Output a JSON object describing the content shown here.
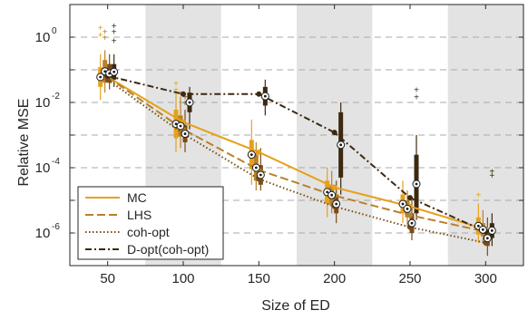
{
  "chart_data": {
    "type": "line",
    "title": "",
    "xlabel": "Size of ED",
    "ylabel": "Relative MSE",
    "xlim": [
      25,
      325
    ],
    "ylim_log10": [
      -7,
      1
    ],
    "yscale": "log",
    "x_ticks": [
      50,
      100,
      150,
      200,
      250,
      300
    ],
    "y_ticks": [
      {
        "base": "10",
        "exp": "0",
        "log": 0
      },
      {
        "base": "10",
        "exp": "-2",
        "log": -2
      },
      {
        "base": "10",
        "exp": "-4",
        "log": -4
      },
      {
        "base": "10",
        "exp": "-6",
        "log": -6
      }
    ],
    "grid": "horizontal dashed at each decade",
    "shaded_x_bands": [
      [
        75,
        125
      ],
      [
        175,
        225
      ],
      [
        275,
        325
      ]
    ],
    "legend_position": "bottom-left",
    "colors": {
      "MC": "#e6a11a",
      "LHS": "#b8812a",
      "coh-opt": "#7a4d18",
      "D-opt(coh-opt)": "#3d2810"
    },
    "x": [
      50,
      100,
      150,
      200,
      250,
      300
    ],
    "series": [
      {
        "name": "MC",
        "style": "solid",
        "values": [
          0.06,
          0.0025,
          0.0003,
          2.5e-05,
          6.5e-06,
          1.3e-06
        ]
      },
      {
        "name": "LHS",
        "style": "dashed",
        "values": [
          0.06,
          0.0015,
          8.5e-05,
          1.4e-05,
          3.5e-06,
          1.1e-06
        ]
      },
      {
        "name": "coh-opt",
        "style": "dotted",
        "values": [
          0.05,
          0.0011,
          4.5e-05,
          6.5e-06,
          1.5e-06,
          5e-07
        ]
      },
      {
        "name": "D-opt(coh-opt)",
        "style": "dashdot",
        "values": [
          0.065,
          0.018,
          0.018,
          0.0012,
          1.2e-05,
          1.1e-06
        ]
      }
    ],
    "boxplots": [
      {
        "series": 0,
        "x": 50,
        "low": 0.012,
        "q1": 0.03,
        "q3": 0.12,
        "high": 0.3,
        "outliers": [
          1.2,
          2.0
        ]
      },
      {
        "series": 1,
        "x": 50,
        "low": 0.02,
        "q1": 0.04,
        "q3": 0.2,
        "high": 0.4,
        "outliers": [
          1.0,
          1.5
        ]
      },
      {
        "series": 2,
        "x": 50,
        "low": 0.025,
        "q1": 0.04,
        "q3": 0.15,
        "high": 0.3,
        "outliers": []
      },
      {
        "series": 3,
        "x": 50,
        "low": 0.03,
        "q1": 0.05,
        "q3": 0.15,
        "high": 0.3,
        "outliers": [
          0.8,
          1.5,
          2.3
        ]
      },
      {
        "series": 0,
        "x": 100,
        "low": 0.0003,
        "q1": 0.0008,
        "q3": 0.006,
        "high": 0.02,
        "outliers": [
          0.025,
          0.04
        ]
      },
      {
        "series": 1,
        "x": 100,
        "low": 0.0004,
        "q1": 0.0009,
        "q3": 0.004,
        "high": 0.015,
        "outliers": [
          0.02
        ]
      },
      {
        "series": 2,
        "x": 100,
        "low": 0.0003,
        "q1": 0.0006,
        "q3": 0.002,
        "high": 0.006,
        "outliers": [
          0.01,
          0.015
        ]
      },
      {
        "series": 3,
        "x": 100,
        "low": 0.0015,
        "q1": 0.005,
        "q3": 0.02,
        "high": 0.03,
        "outliers": []
      },
      {
        "series": 0,
        "x": 150,
        "low": 3e-05,
        "q1": 9e-05,
        "q3": 0.0007,
        "high": 0.003,
        "outliers": [
          0.0003,
          0.0005,
          0.0007
        ]
      },
      {
        "series": 1,
        "x": 150,
        "low": 2e-05,
        "q1": 4e-05,
        "q3": 0.00025,
        "high": 0.0006,
        "outliers": []
      },
      {
        "series": 2,
        "x": 150,
        "low": 2e-05,
        "q1": 3e-05,
        "q3": 0.00012,
        "high": 0.0004,
        "outliers": []
      },
      {
        "series": 3,
        "x": 150,
        "low": 0.004,
        "q1": 0.008,
        "q3": 0.03,
        "high": 0.05,
        "outliers": []
      },
      {
        "series": 0,
        "x": 200,
        "low": 3e-06,
        "q1": 8e-06,
        "q3": 4e-05,
        "high": 0.0001,
        "outliers": []
      },
      {
        "series": 1,
        "x": 200,
        "low": 4e-06,
        "q1": 7e-06,
        "q3": 3e-05,
        "high": 8e-05,
        "outliers": []
      },
      {
        "series": 2,
        "x": 200,
        "low": 2e-06,
        "q1": 4e-06,
        "q3": 1.5e-05,
        "high": 4e-05,
        "outliers": []
      },
      {
        "series": 3,
        "x": 200,
        "low": 1.5e-05,
        "q1": 5e-05,
        "q3": 0.005,
        "high": 0.01,
        "outliers": []
      },
      {
        "series": 0,
        "x": 250,
        "low": 2e-06,
        "q1": 4e-06,
        "q3": 1.5e-05,
        "high": 4e-05,
        "outliers": []
      },
      {
        "series": 1,
        "x": 250,
        "low": 1.5e-06,
        "q1": 3e-06,
        "q3": 1e-05,
        "high": 2e-05,
        "outliers": []
      },
      {
        "series": 2,
        "x": 250,
        "low": 6e-07,
        "q1": 1e-06,
        "q3": 4e-06,
        "high": 1e-05,
        "outliers": []
      },
      {
        "series": 3,
        "x": 250,
        "low": 2.5e-06,
        "q1": 4e-06,
        "q3": 0.00025,
        "high": 0.001,
        "outliers": [
          0.025,
          0.015
        ]
      },
      {
        "series": 0,
        "x": 300,
        "low": 5e-07,
        "q1": 9e-07,
        "q3": 3e-06,
        "high": 8e-06,
        "outliers": [
          1.5e-05
        ]
      },
      {
        "series": 1,
        "x": 300,
        "low": 5e-07,
        "q1": 8e-07,
        "q3": 2e-06,
        "high": 5e-06,
        "outliers": []
      },
      {
        "series": 2,
        "x": 300,
        "low": 2e-07,
        "q1": 4e-07,
        "q3": 1.2e-06,
        "high": 3e-06,
        "outliers": []
      },
      {
        "series": 3,
        "x": 300,
        "low": 4e-07,
        "q1": 7e-07,
        "q3": 2e-06,
        "high": 4e-06,
        "outliers": [
          8e-05,
          6e-05
        ]
      }
    ]
  }
}
